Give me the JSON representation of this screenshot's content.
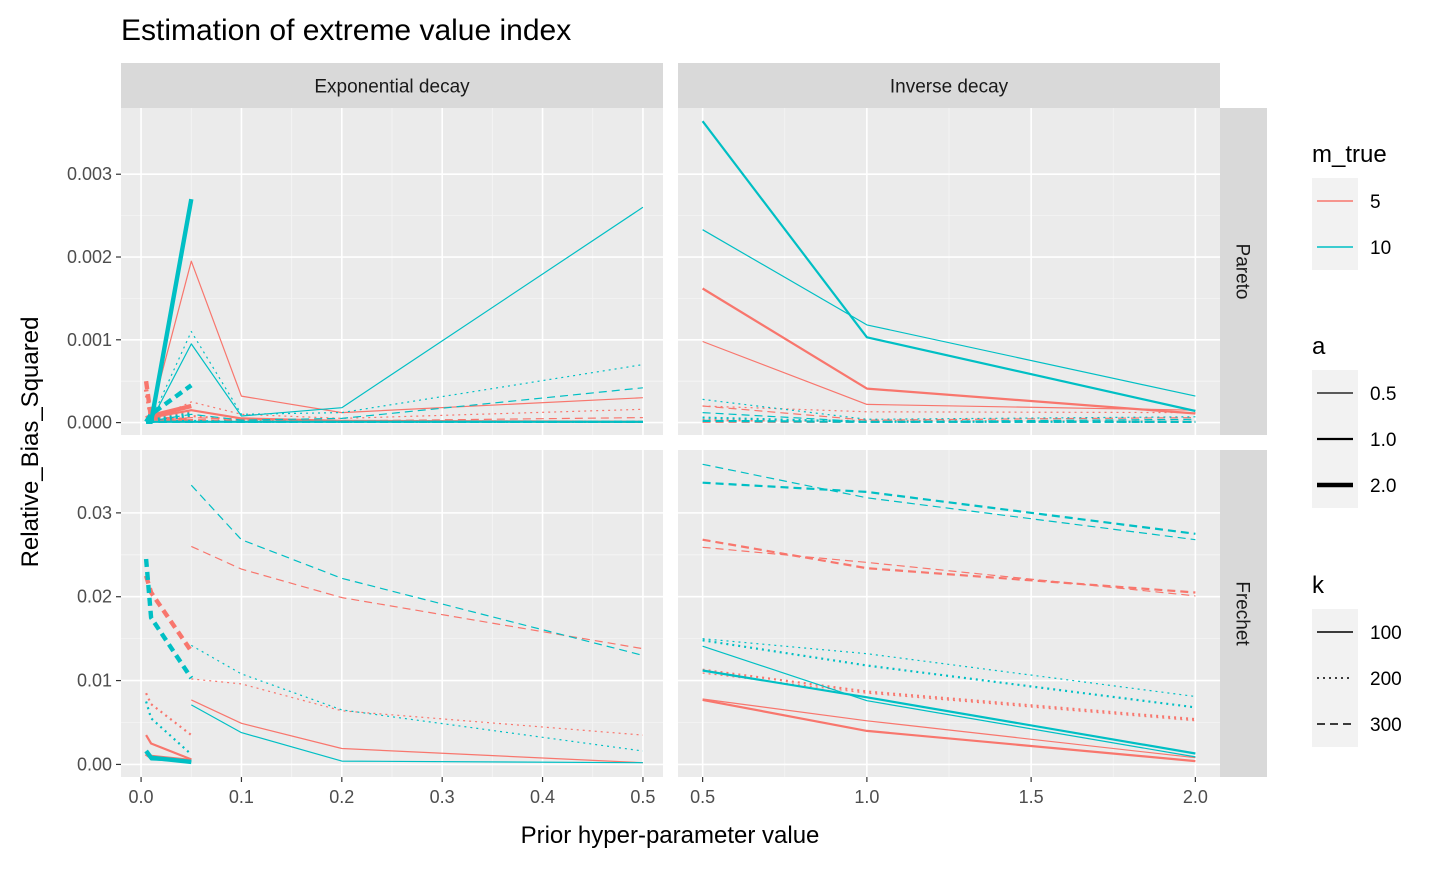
{
  "chart_data": {
    "type": "line",
    "title": "Estimation of extreme value index",
    "xlabel": "Prior hyper-parameter value",
    "ylabel": "Relative_Bias_Squared",
    "columns": [
      {
        "label": "Exponential decay",
        "xlim": [
          -0.02,
          0.52
        ],
        "xticks": [
          0.0,
          0.1,
          0.2,
          0.3,
          0.4,
          0.5
        ],
        "xtick_labels": [
          "0.0",
          "0.1",
          "0.2",
          "0.3",
          "0.4",
          "0.5"
        ]
      },
      {
        "label": "Inverse decay",
        "xlim": [
          0.425,
          2.075
        ],
        "xticks": [
          0.5,
          1.0,
          1.5,
          2.0
        ],
        "xtick_labels": [
          "0.5",
          "1.0",
          "1.5",
          "2.0"
        ]
      }
    ],
    "rows": [
      {
        "label": "Pareto",
        "ylim": [
          -0.00015,
          0.0038
        ],
        "yticks": [
          0.0,
          0.001,
          0.002,
          0.003
        ],
        "ytick_labels": [
          "0.000",
          "0.001",
          "0.002",
          "0.003"
        ]
      },
      {
        "label": "Frechet",
        "ylim": [
          -0.0015,
          0.0375
        ],
        "yticks": [
          0.0,
          0.01,
          0.02,
          0.03
        ],
        "ytick_labels": [
          "0.00",
          "0.01",
          "0.02",
          "0.03"
        ]
      }
    ],
    "grid": true,
    "legend": {
      "position": "right",
      "groups": [
        {
          "title": "m_true",
          "kind": "color",
          "entries": [
            {
              "label": "5",
              "color": "#F8766D"
            },
            {
              "label": "10",
              "color": "#00BFC4"
            }
          ]
        },
        {
          "title": "a",
          "kind": "linewidth",
          "entries": [
            {
              "label": "0.5",
              "width": 1.2
            },
            {
              "label": "1.0",
              "width": 2.2
            },
            {
              "label": "2.0",
              "width": 4.4
            }
          ]
        },
        {
          "title": "k",
          "kind": "linetype",
          "entries": [
            {
              "label": "100",
              "dash": "solid"
            },
            {
              "label": "200",
              "dash": "dotted"
            },
            {
              "label": "300",
              "dash": "dashed"
            }
          ]
        }
      ]
    },
    "series": [
      {
        "panel": [
          0,
          0
        ],
        "m_true": "5",
        "a": "0.5",
        "k": "100",
        "x": [
          0.005,
          0.01,
          0.05,
          0.1,
          0.2,
          0.5
        ],
        "y": [
          1e-05,
          0.0001,
          0.00195,
          0.00032,
          0.00012,
          0.0003
        ]
      },
      {
        "panel": [
          0,
          0
        ],
        "m_true": "5",
        "a": "1.0",
        "k": "100",
        "x": [
          0.005,
          0.01,
          0.05,
          0.1,
          0.2,
          0.5
        ],
        "y": [
          2e-05,
          6e-05,
          0.00015,
          5e-05,
          2e-05,
          1e-05
        ]
      },
      {
        "panel": [
          0,
          0
        ],
        "m_true": "5",
        "a": "2.0",
        "k": "100",
        "x": [
          0.005,
          0.01,
          0.05
        ],
        "y": [
          5e-05,
          8e-05,
          0.0002
        ]
      },
      {
        "panel": [
          0,
          0
        ],
        "m_true": "5",
        "a": "0.5",
        "k": "200",
        "x": [
          0.005,
          0.01,
          0.05,
          0.1,
          0.2,
          0.5
        ],
        "y": [
          1e-05,
          3e-05,
          0.00025,
          0.0001,
          5e-05,
          0.00016
        ]
      },
      {
        "panel": [
          0,
          0
        ],
        "m_true": "5",
        "a": "1.0",
        "k": "200",
        "x": [
          0.005,
          0.01,
          0.05,
          0.1,
          0.2,
          0.5
        ],
        "y": [
          2e-05,
          4e-05,
          8e-05,
          3e-05,
          1e-05,
          1e-05
        ]
      },
      {
        "panel": [
          0,
          0
        ],
        "m_true": "5",
        "a": "2.0",
        "k": "200",
        "x": [
          0.005,
          0.01,
          0.05
        ],
        "y": [
          0.0004,
          5e-05,
          0.00012
        ]
      },
      {
        "panel": [
          0,
          0
        ],
        "m_true": "5",
        "a": "0.5",
        "k": "300",
        "x": [
          0.005,
          0.01,
          0.05,
          0.1,
          0.2,
          0.5
        ],
        "y": [
          1e-05,
          2e-05,
          6e-05,
          4e-05,
          2e-05,
          6e-05
        ]
      },
      {
        "panel": [
          0,
          0
        ],
        "m_true": "5",
        "a": "1.0",
        "k": "300",
        "x": [
          0.005,
          0.01,
          0.05,
          0.1,
          0.2,
          0.5
        ],
        "y": [
          1e-05,
          1e-05,
          3e-05,
          2e-05,
          1e-05,
          1e-05
        ]
      },
      {
        "panel": [
          0,
          0
        ],
        "m_true": "5",
        "a": "2.0",
        "k": "300",
        "x": [
          0.005,
          0.01,
          0.05
        ],
        "y": [
          0.0005,
          5e-05,
          3e-05
        ]
      },
      {
        "panel": [
          0,
          0
        ],
        "m_true": "10",
        "a": "0.5",
        "k": "100",
        "x": [
          0.005,
          0.01,
          0.05,
          0.1,
          0.2,
          0.5
        ],
        "y": [
          1e-05,
          2e-05,
          0.00095,
          8e-05,
          0.00018,
          0.0026
        ]
      },
      {
        "panel": [
          0,
          0
        ],
        "m_true": "10",
        "a": "1.0",
        "k": "100",
        "x": [
          0.005,
          0.01,
          0.05,
          0.1,
          0.2,
          0.5
        ],
        "y": [
          1e-05,
          1e-05,
          1e-05,
          1e-05,
          1e-05,
          1e-05
        ]
      },
      {
        "panel": [
          0,
          0
        ],
        "m_true": "10",
        "a": "2.0",
        "k": "100",
        "x": [
          0.005,
          0.01,
          0.05
        ],
        "y": [
          1e-05,
          1e-05,
          0.0027
        ]
      },
      {
        "panel": [
          0,
          0
        ],
        "m_true": "10",
        "a": "0.5",
        "k": "200",
        "x": [
          0.005,
          0.01,
          0.05,
          0.1,
          0.2,
          0.5
        ],
        "y": [
          1e-05,
          3e-05,
          0.0011,
          0.0001,
          0.00012,
          0.0007
        ]
      },
      {
        "panel": [
          0,
          0
        ],
        "m_true": "10",
        "a": "1.0",
        "k": "200",
        "x": [
          0.005,
          0.01,
          0.05,
          0.1,
          0.2,
          0.5
        ],
        "y": [
          1e-05,
          1e-05,
          2e-05,
          1e-05,
          1e-05,
          1e-05
        ]
      },
      {
        "panel": [
          0,
          0
        ],
        "m_true": "10",
        "a": "2.0",
        "k": "200",
        "x": [
          0.005,
          0.01,
          0.05
        ],
        "y": [
          1e-05,
          2e-05,
          0.0001
        ]
      },
      {
        "panel": [
          0,
          0
        ],
        "m_true": "10",
        "a": "0.5",
        "k": "300",
        "x": [
          0.005,
          0.01,
          0.05,
          0.1,
          0.2,
          0.5
        ],
        "y": [
          1e-05,
          2e-05,
          0.0001,
          3e-05,
          5e-05,
          0.00042
        ]
      },
      {
        "panel": [
          0,
          0
        ],
        "m_true": "10",
        "a": "1.0",
        "k": "300",
        "x": [
          0.005,
          0.01,
          0.05,
          0.1,
          0.2,
          0.5
        ],
        "y": [
          1e-05,
          1e-05,
          1e-05,
          1e-05,
          1e-05,
          1e-05
        ]
      },
      {
        "panel": [
          0,
          0
        ],
        "m_true": "10",
        "a": "2.0",
        "k": "300",
        "x": [
          0.005,
          0.01,
          0.05
        ],
        "y": [
          1e-05,
          0.0001,
          0.00045
        ]
      },
      {
        "panel": [
          0,
          1
        ],
        "m_true": "5",
        "a": "0.5",
        "k": "100",
        "x": [
          0.5,
          1.0,
          2.0
        ],
        "y": [
          0.00098,
          0.00022,
          0.00015
        ]
      },
      {
        "panel": [
          0,
          1
        ],
        "m_true": "5",
        "a": "1.0",
        "k": "100",
        "x": [
          0.5,
          1.0,
          2.0
        ],
        "y": [
          0.00162,
          0.00041,
          0.00011
        ]
      },
      {
        "panel": [
          0,
          1
        ],
        "m_true": "5",
        "a": "0.5",
        "k": "200",
        "x": [
          0.5,
          1.0,
          2.0
        ],
        "y": [
          0.0002,
          0.00013,
          0.00012
        ]
      },
      {
        "panel": [
          0,
          1
        ],
        "m_true": "5",
        "a": "1.0",
        "k": "200",
        "x": [
          0.5,
          1.0,
          2.0
        ],
        "y": [
          3e-05,
          2e-05,
          1e-05
        ]
      },
      {
        "panel": [
          0,
          1
        ],
        "m_true": "5",
        "a": "0.5",
        "k": "300",
        "x": [
          0.5,
          1.0,
          2.0
        ],
        "y": [
          0.0002,
          3e-05,
          6e-05
        ]
      },
      {
        "panel": [
          0,
          1
        ],
        "m_true": "5",
        "a": "1.0",
        "k": "300",
        "x": [
          0.5,
          1.0,
          2.0
        ],
        "y": [
          1e-05,
          1e-05,
          1e-05
        ]
      },
      {
        "panel": [
          0,
          1
        ],
        "m_true": "10",
        "a": "0.5",
        "k": "100",
        "x": [
          0.5,
          1.0,
          2.0
        ],
        "y": [
          0.00233,
          0.00118,
          0.00032
        ]
      },
      {
        "panel": [
          0,
          1
        ],
        "m_true": "10",
        "a": "1.0",
        "k": "100",
        "x": [
          0.5,
          1.0,
          2.0
        ],
        "y": [
          0.00364,
          0.00103,
          0.00014
        ]
      },
      {
        "panel": [
          0,
          1
        ],
        "m_true": "10",
        "a": "0.5",
        "k": "200",
        "x": [
          0.5,
          1.0,
          2.0
        ],
        "y": [
          0.00028,
          4e-05,
          7e-05
        ]
      },
      {
        "panel": [
          0,
          1
        ],
        "m_true": "10",
        "a": "1.0",
        "k": "200",
        "x": [
          0.5,
          1.0,
          2.0
        ],
        "y": [
          6e-05,
          1e-05,
          1e-05
        ]
      },
      {
        "panel": [
          0,
          1
        ],
        "m_true": "10",
        "a": "0.5",
        "k": "300",
        "x": [
          0.5,
          1.0,
          2.0
        ],
        "y": [
          0.00012,
          1e-05,
          4e-05
        ]
      },
      {
        "panel": [
          0,
          1
        ],
        "m_true": "10",
        "a": "1.0",
        "k": "300",
        "x": [
          0.5,
          1.0,
          2.0
        ],
        "y": [
          2e-05,
          1e-05,
          1e-05
        ]
      },
      {
        "panel": [
          1,
          0
        ],
        "m_true": "5",
        "a": "0.5",
        "k": "100",
        "x": [
          0.05,
          0.1,
          0.2,
          0.5
        ],
        "y": [
          0.0077,
          0.0049,
          0.0019,
          0.0002
        ]
      },
      {
        "panel": [
          1,
          0
        ],
        "m_true": "5",
        "a": "1.0",
        "k": "100",
        "x": [
          0.005,
          0.01,
          0.05
        ],
        "y": [
          0.0035,
          0.0025,
          0.0006
        ]
      },
      {
        "panel": [
          1,
          0
        ],
        "m_true": "5",
        "a": "2.0",
        "k": "100",
        "x": [
          0.005,
          0.01,
          0.05
        ],
        "y": [
          0.0013,
          0.0009,
          0.0004
        ]
      },
      {
        "panel": [
          1,
          0
        ],
        "m_true": "5",
        "a": "0.5",
        "k": "200",
        "x": [
          0.05,
          0.1,
          0.2,
          0.5
        ],
        "y": [
          0.0102,
          0.0096,
          0.0064,
          0.0035
        ]
      },
      {
        "panel": [
          1,
          0
        ],
        "m_true": "5",
        "a": "1.0",
        "k": "200",
        "x": [
          0.005,
          0.01,
          0.05
        ],
        "y": [
          0.0085,
          0.0072,
          0.0035
        ]
      },
      {
        "panel": [
          1,
          0
        ],
        "m_true": "5",
        "a": "0.5",
        "k": "300",
        "x": [
          0.05,
          0.1,
          0.2,
          0.5
        ],
        "y": [
          0.026,
          0.0233,
          0.0199,
          0.0138
        ]
      },
      {
        "panel": [
          1,
          0
        ],
        "m_true": "5",
        "a": "2.0",
        "k": "300",
        "x": [
          0.005,
          0.01,
          0.05
        ],
        "y": [
          0.0225,
          0.0205,
          0.0135
        ]
      },
      {
        "panel": [
          1,
          0
        ],
        "m_true": "10",
        "a": "0.5",
        "k": "100",
        "x": [
          0.05,
          0.1,
          0.2,
          0.5
        ],
        "y": [
          0.0071,
          0.0038,
          0.0004,
          0.0002
        ]
      },
      {
        "panel": [
          1,
          0
        ],
        "m_true": "10",
        "a": "1.0",
        "k": "100",
        "x": [
          0.005,
          0.01,
          0.05
        ],
        "y": [
          0.0015,
          0.0006,
          0.0004
        ]
      },
      {
        "panel": [
          1,
          0
        ],
        "m_true": "10",
        "a": "2.0",
        "k": "100",
        "x": [
          0.005,
          0.01,
          0.05
        ],
        "y": [
          0.0016,
          0.0008,
          0.0003
        ]
      },
      {
        "panel": [
          1,
          0
        ],
        "m_true": "10",
        "a": "0.5",
        "k": "200",
        "x": [
          0.05,
          0.1,
          0.2,
          0.5
        ],
        "y": [
          0.0142,
          0.0108,
          0.0065,
          0.0016
        ]
      },
      {
        "panel": [
          1,
          0
        ],
        "m_true": "10",
        "a": "1.0",
        "k": "200",
        "x": [
          0.005,
          0.01,
          0.05
        ],
        "y": [
          0.0075,
          0.0055,
          0.0012
        ]
      },
      {
        "panel": [
          1,
          0
        ],
        "m_true": "10",
        "a": "0.5",
        "k": "300",
        "x": [
          0.05,
          0.1,
          0.2,
          0.5
        ],
        "y": [
          0.0333,
          0.0268,
          0.0222,
          0.013
        ]
      },
      {
        "panel": [
          1,
          0
        ],
        "m_true": "10",
        "a": "2.0",
        "k": "300",
        "x": [
          0.005,
          0.01,
          0.05
        ],
        "y": [
          0.0245,
          0.0175,
          0.0103
        ]
      },
      {
        "panel": [
          1,
          1
        ],
        "m_true": "5",
        "a": "0.5",
        "k": "100",
        "x": [
          0.5,
          1.0,
          2.0
        ],
        "y": [
          0.0078,
          0.0052,
          0.0008
        ]
      },
      {
        "panel": [
          1,
          1
        ],
        "m_true": "5",
        "a": "1.0",
        "k": "100",
        "x": [
          0.5,
          1.0,
          2.0
        ],
        "y": [
          0.0077,
          0.004,
          0.0004
        ]
      },
      {
        "panel": [
          1,
          1
        ],
        "m_true": "5",
        "a": "0.5",
        "k": "200",
        "x": [
          0.5,
          1.0,
          2.0
        ],
        "y": [
          0.0109,
          0.0085,
          0.0052
        ]
      },
      {
        "panel": [
          1,
          1
        ],
        "m_true": "5",
        "a": "1.0",
        "k": "200",
        "x": [
          0.5,
          1.0,
          2.0
        ],
        "y": [
          0.0113,
          0.0087,
          0.0054
        ]
      },
      {
        "panel": [
          1,
          1
        ],
        "m_true": "5",
        "a": "0.5",
        "k": "300",
        "x": [
          0.5,
          1.0,
          2.0
        ],
        "y": [
          0.0259,
          0.0241,
          0.0201
        ]
      },
      {
        "panel": [
          1,
          1
        ],
        "m_true": "5",
        "a": "1.0",
        "k": "300",
        "x": [
          0.5,
          1.0,
          2.0
        ],
        "y": [
          0.0268,
          0.0234,
          0.0205
        ]
      },
      {
        "panel": [
          1,
          1
        ],
        "m_true": "10",
        "a": "0.5",
        "k": "100",
        "x": [
          0.5,
          1.0,
          2.0
        ],
        "y": [
          0.0141,
          0.0076,
          0.0009
        ]
      },
      {
        "panel": [
          1,
          1
        ],
        "m_true": "10",
        "a": "1.0",
        "k": "100",
        "x": [
          0.5,
          1.0,
          2.0
        ],
        "y": [
          0.0112,
          0.008,
          0.0013
        ]
      },
      {
        "panel": [
          1,
          1
        ],
        "m_true": "10",
        "a": "0.5",
        "k": "200",
        "x": [
          0.5,
          1.0,
          2.0
        ],
        "y": [
          0.015,
          0.0132,
          0.0081
        ]
      },
      {
        "panel": [
          1,
          1
        ],
        "m_true": "10",
        "a": "1.0",
        "k": "200",
        "x": [
          0.5,
          1.0,
          2.0
        ],
        "y": [
          0.0148,
          0.0118,
          0.0068
        ]
      },
      {
        "panel": [
          1,
          1
        ],
        "m_true": "10",
        "a": "0.5",
        "k": "300",
        "x": [
          0.5,
          1.0,
          2.0
        ],
        "y": [
          0.0358,
          0.0318,
          0.0268
        ]
      },
      {
        "panel": [
          1,
          1
        ],
        "m_true": "10",
        "a": "1.0",
        "k": "300",
        "x": [
          0.5,
          1.0,
          2.0
        ],
        "y": [
          0.0336,
          0.0325,
          0.0275
        ]
      }
    ]
  }
}
